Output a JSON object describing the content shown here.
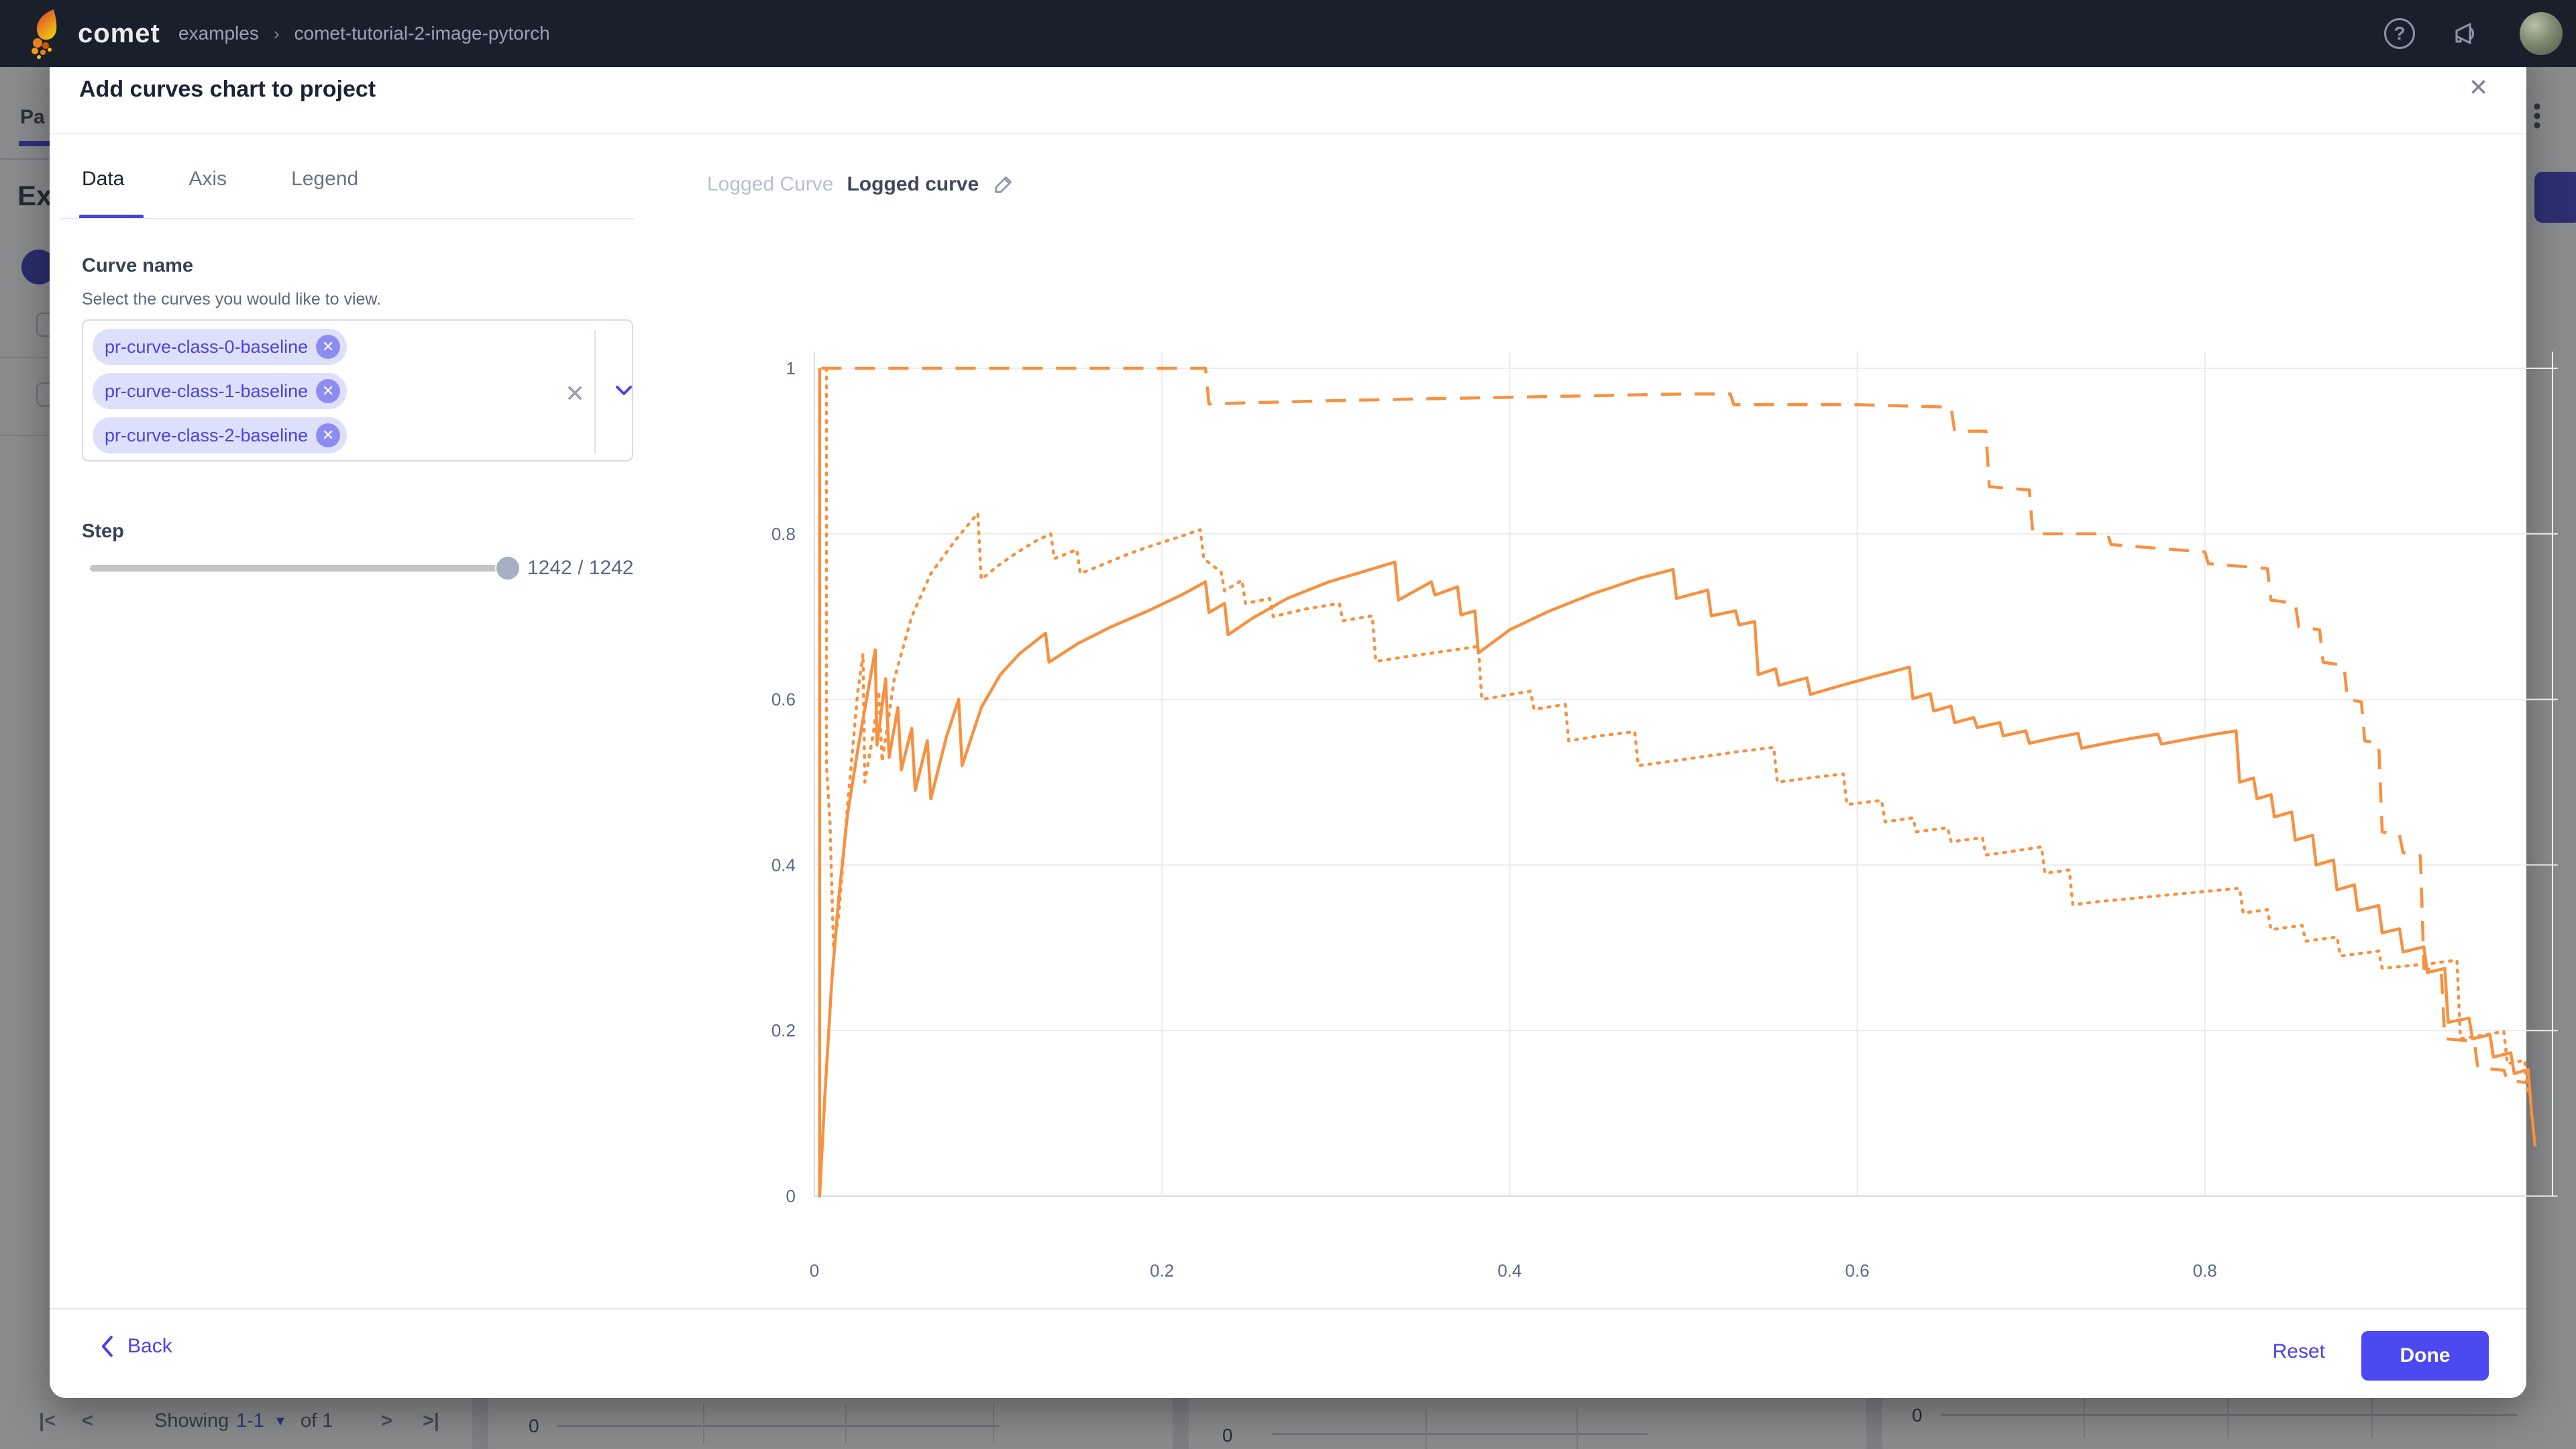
{
  "topbar": {
    "logo_text": "comet",
    "breadcrumb": {
      "workspace": "examples",
      "separator": "›",
      "project": "comet-tutorial-2-image-pytorch"
    },
    "help_icon_glyph": "?"
  },
  "modal": {
    "title": "Add curves chart to project",
    "close_glyph": "×",
    "tabs": [
      {
        "label": "Data",
        "active": true
      },
      {
        "label": "Axis",
        "active": false
      },
      {
        "label": "Legend",
        "active": false
      }
    ],
    "curve_select": {
      "label": "Curve name",
      "helper": "Select the curves you would like to view.",
      "chips": [
        {
          "label": "pr-curve-class-0-baseline",
          "remove_glyph": "✕"
        },
        {
          "label": "pr-curve-class-1-baseline",
          "remove_glyph": "✕"
        },
        {
          "label": "pr-curve-class-2-baseline",
          "remove_glyph": "✕"
        }
      ],
      "clear_glyph": "✕"
    },
    "step": {
      "label": "Step",
      "value_text": "1242 / 1242",
      "slider_position": "max"
    },
    "logged_curve": {
      "label": "Logged Curve",
      "value": "Logged curve"
    },
    "footer": {
      "back_label": "Back",
      "reset_label": "Reset",
      "done_label": "Done"
    }
  },
  "chart_data": {
    "type": "line",
    "title": "",
    "xlabel": "",
    "ylabel": "",
    "xlim": [
      0,
      1.0
    ],
    "ylim": [
      0,
      1.0
    ],
    "x_ticks": [
      0,
      0.2,
      0.4,
      0.6,
      0.8
    ],
    "y_ticks": [
      0,
      0.2,
      0.4,
      0.6,
      0.8,
      1
    ],
    "grid": true,
    "legend": "none",
    "line_color": "#f79140",
    "series": [
      {
        "name": "pr-curve-class-0-baseline",
        "style": "solid",
        "points": [
          [
            0.003,
            1.0
          ],
          [
            0.003,
            0.0
          ],
          [
            0.006,
            0.12
          ],
          [
            0.01,
            0.26
          ],
          [
            0.014,
            0.36
          ],
          [
            0.019,
            0.46
          ],
          [
            0.025,
            0.54
          ],
          [
            0.03,
            0.6
          ],
          [
            0.035,
            0.66
          ],
          [
            0.036,
            0.545
          ],
          [
            0.041,
            0.625
          ],
          [
            0.043,
            0.53
          ],
          [
            0.048,
            0.59
          ],
          [
            0.05,
            0.515
          ],
          [
            0.056,
            0.565
          ],
          [
            0.058,
            0.49
          ],
          [
            0.065,
            0.55
          ],
          [
            0.067,
            0.48
          ],
          [
            0.076,
            0.555
          ],
          [
            0.083,
            0.6
          ],
          [
            0.085,
            0.52
          ],
          [
            0.096,
            0.59
          ],
          [
            0.107,
            0.63
          ],
          [
            0.118,
            0.655
          ],
          [
            0.133,
            0.68
          ],
          [
            0.135,
            0.645
          ],
          [
            0.152,
            0.668
          ],
          [
            0.17,
            0.687
          ],
          [
            0.192,
            0.707
          ],
          [
            0.212,
            0.727
          ],
          [
            0.225,
            0.742
          ],
          [
            0.227,
            0.705
          ],
          [
            0.236,
            0.716
          ],
          [
            0.238,
            0.678
          ],
          [
            0.252,
            0.698
          ],
          [
            0.272,
            0.722
          ],
          [
            0.296,
            0.742
          ],
          [
            0.32,
            0.757
          ],
          [
            0.334,
            0.766
          ],
          [
            0.336,
            0.72
          ],
          [
            0.355,
            0.742
          ],
          [
            0.357,
            0.726
          ],
          [
            0.37,
            0.736
          ],
          [
            0.372,
            0.702
          ],
          [
            0.38,
            0.707
          ],
          [
            0.382,
            0.656
          ],
          [
            0.4,
            0.684
          ],
          [
            0.422,
            0.706
          ],
          [
            0.447,
            0.727
          ],
          [
            0.474,
            0.746
          ],
          [
            0.494,
            0.757
          ],
          [
            0.496,
            0.722
          ],
          [
            0.514,
            0.732
          ],
          [
            0.516,
            0.701
          ],
          [
            0.53,
            0.707
          ],
          [
            0.532,
            0.69
          ],
          [
            0.541,
            0.694
          ],
          [
            0.543,
            0.63
          ],
          [
            0.553,
            0.637
          ],
          [
            0.555,
            0.617
          ],
          [
            0.571,
            0.626
          ],
          [
            0.573,
            0.606
          ],
          [
            0.591,
            0.617
          ],
          [
            0.612,
            0.629
          ],
          [
            0.63,
            0.639
          ],
          [
            0.632,
            0.601
          ],
          [
            0.642,
            0.607
          ],
          [
            0.644,
            0.586
          ],
          [
            0.654,
            0.592
          ],
          [
            0.656,
            0.572
          ],
          [
            0.667,
            0.578
          ],
          [
            0.669,
            0.566
          ],
          [
            0.682,
            0.572
          ],
          [
            0.684,
            0.556
          ],
          [
            0.697,
            0.562
          ],
          [
            0.699,
            0.547
          ],
          [
            0.712,
            0.553
          ],
          [
            0.727,
            0.559
          ],
          [
            0.729,
            0.541
          ],
          [
            0.743,
            0.547
          ],
          [
            0.758,
            0.553
          ],
          [
            0.773,
            0.558
          ],
          [
            0.775,
            0.546
          ],
          [
            0.79,
            0.552
          ],
          [
            0.806,
            0.558
          ],
          [
            0.818,
            0.562
          ],
          [
            0.82,
            0.5
          ],
          [
            0.828,
            0.505
          ],
          [
            0.83,
            0.48
          ],
          [
            0.838,
            0.485
          ],
          [
            0.84,
            0.458
          ],
          [
            0.85,
            0.464
          ],
          [
            0.852,
            0.43
          ],
          [
            0.862,
            0.436
          ],
          [
            0.864,
            0.4
          ],
          [
            0.874,
            0.406
          ],
          [
            0.876,
            0.37
          ],
          [
            0.886,
            0.376
          ],
          [
            0.888,
            0.345
          ],
          [
            0.9,
            0.351
          ],
          [
            0.902,
            0.318
          ],
          [
            0.912,
            0.323
          ],
          [
            0.914,
            0.295
          ],
          [
            0.926,
            0.301
          ],
          [
            0.928,
            0.27
          ],
          [
            0.938,
            0.275
          ],
          [
            0.94,
            0.21
          ],
          [
            0.952,
            0.215
          ],
          [
            0.954,
            0.19
          ],
          [
            0.964,
            0.195
          ],
          [
            0.966,
            0.168
          ],
          [
            0.976,
            0.173
          ],
          [
            0.978,
            0.148
          ],
          [
            0.986,
            0.153
          ],
          [
            0.988,
            0.1
          ],
          [
            0.99,
            0.06
          ]
        ]
      },
      {
        "name": "pr-curve-class-1-baseline",
        "style": "dashed",
        "points": [
          [
            0.004,
            1.0
          ],
          [
            0.225,
            1.0
          ],
          [
            0.227,
            0.957
          ],
          [
            0.3,
            0.961
          ],
          [
            0.4,
            0.965
          ],
          [
            0.5,
            0.969
          ],
          [
            0.527,
            0.969
          ],
          [
            0.529,
            0.956
          ],
          [
            0.6,
            0.956
          ],
          [
            0.654,
            0.953
          ],
          [
            0.656,
            0.924
          ],
          [
            0.674,
            0.924
          ],
          [
            0.676,
            0.857
          ],
          [
            0.699,
            0.853
          ],
          [
            0.701,
            0.8
          ],
          [
            0.744,
            0.8
          ],
          [
            0.746,
            0.787
          ],
          [
            0.8,
            0.778
          ],
          [
            0.802,
            0.764
          ],
          [
            0.836,
            0.758
          ],
          [
            0.838,
            0.72
          ],
          [
            0.852,
            0.716
          ],
          [
            0.854,
            0.688
          ],
          [
            0.866,
            0.684
          ],
          [
            0.868,
            0.645
          ],
          [
            0.88,
            0.641
          ],
          [
            0.882,
            0.6
          ],
          [
            0.89,
            0.597
          ],
          [
            0.892,
            0.55
          ],
          [
            0.9,
            0.547
          ],
          [
            0.902,
            0.44
          ],
          [
            0.912,
            0.436
          ],
          [
            0.914,
            0.415
          ],
          [
            0.924,
            0.411
          ],
          [
            0.926,
            0.275
          ],
          [
            0.936,
            0.271
          ],
          [
            0.938,
            0.19
          ],
          [
            0.955,
            0.187
          ],
          [
            0.957,
            0.155
          ],
          [
            0.972,
            0.152
          ],
          [
            0.974,
            0.14
          ],
          [
            0.985,
            0.137
          ]
        ]
      },
      {
        "name": "pr-curve-class-2-baseline",
        "style": "dotted",
        "points": [
          [
            0.007,
            1.0
          ],
          [
            0.007,
            0.52
          ],
          [
            0.009,
            0.45
          ],
          [
            0.011,
            0.3
          ],
          [
            0.014,
            0.34
          ],
          [
            0.019,
            0.47
          ],
          [
            0.025,
            0.61
          ],
          [
            0.028,
            0.655
          ],
          [
            0.029,
            0.5
          ],
          [
            0.034,
            0.56
          ],
          [
            0.037,
            0.61
          ],
          [
            0.039,
            0.525
          ],
          [
            0.046,
            0.625
          ],
          [
            0.056,
            0.7
          ],
          [
            0.067,
            0.752
          ],
          [
            0.081,
            0.792
          ],
          [
            0.094,
            0.825
          ],
          [
            0.096,
            0.745
          ],
          [
            0.106,
            0.762
          ],
          [
            0.117,
            0.778
          ],
          [
            0.128,
            0.792
          ],
          [
            0.136,
            0.8
          ],
          [
            0.138,
            0.77
          ],
          [
            0.151,
            0.781
          ],
          [
            0.153,
            0.752
          ],
          [
            0.166,
            0.763
          ],
          [
            0.181,
            0.776
          ],
          [
            0.196,
            0.787
          ],
          [
            0.211,
            0.797
          ],
          [
            0.222,
            0.805
          ],
          [
            0.224,
            0.77
          ],
          [
            0.234,
            0.754
          ],
          [
            0.236,
            0.731
          ],
          [
            0.246,
            0.744
          ],
          [
            0.248,
            0.716
          ],
          [
            0.262,
            0.722
          ],
          [
            0.264,
            0.7
          ],
          [
            0.282,
            0.709
          ],
          [
            0.302,
            0.716
          ],
          [
            0.304,
            0.695
          ],
          [
            0.321,
            0.701
          ],
          [
            0.323,
            0.646
          ],
          [
            0.342,
            0.652
          ],
          [
            0.362,
            0.658
          ],
          [
            0.382,
            0.664
          ],
          [
            0.384,
            0.6
          ],
          [
            0.398,
            0.605
          ],
          [
            0.412,
            0.61
          ],
          [
            0.414,
            0.588
          ],
          [
            0.432,
            0.594
          ],
          [
            0.434,
            0.55
          ],
          [
            0.452,
            0.556
          ],
          [
            0.472,
            0.561
          ],
          [
            0.474,
            0.52
          ],
          [
            0.492,
            0.525
          ],
          [
            0.512,
            0.531
          ],
          [
            0.532,
            0.537
          ],
          [
            0.552,
            0.542
          ],
          [
            0.554,
            0.5
          ],
          [
            0.572,
            0.505
          ],
          [
            0.592,
            0.51
          ],
          [
            0.594,
            0.473
          ],
          [
            0.614,
            0.478
          ],
          [
            0.616,
            0.452
          ],
          [
            0.632,
            0.457
          ],
          [
            0.634,
            0.44
          ],
          [
            0.652,
            0.445
          ],
          [
            0.654,
            0.428
          ],
          [
            0.672,
            0.433
          ],
          [
            0.674,
            0.412
          ],
          [
            0.694,
            0.418
          ],
          [
            0.706,
            0.422
          ],
          [
            0.708,
            0.39
          ],
          [
            0.722,
            0.394
          ],
          [
            0.724,
            0.352
          ],
          [
            0.74,
            0.356
          ],
          [
            0.76,
            0.36
          ],
          [
            0.78,
            0.364
          ],
          [
            0.8,
            0.368
          ],
          [
            0.82,
            0.372
          ],
          [
            0.822,
            0.342
          ],
          [
            0.836,
            0.346
          ],
          [
            0.838,
            0.322
          ],
          [
            0.856,
            0.327
          ],
          [
            0.858,
            0.308
          ],
          [
            0.876,
            0.313
          ],
          [
            0.878,
            0.29
          ],
          [
            0.9,
            0.296
          ],
          [
            0.902,
            0.275
          ],
          [
            0.93,
            0.281
          ],
          [
            0.945,
            0.285
          ],
          [
            0.947,
            0.19
          ],
          [
            0.962,
            0.195
          ],
          [
            0.972,
            0.199
          ],
          [
            0.974,
            0.16
          ],
          [
            0.984,
            0.164
          ],
          [
            0.986,
            0.12
          ]
        ]
      }
    ]
  },
  "background": {
    "tab_label": "Pa",
    "heading": "Ex",
    "kebab_glyph": "⋮",
    "pagination": {
      "first": "|<",
      "prev": "<",
      "showing": "Showing",
      "range": "1-1",
      "caret": "▼",
      "of": "of 1",
      "next": ">",
      "last": ">|"
    },
    "panel_axis_zero_1": "0",
    "panel_axis_zero_2": "0",
    "panel_axis_zero_3": "0"
  }
}
